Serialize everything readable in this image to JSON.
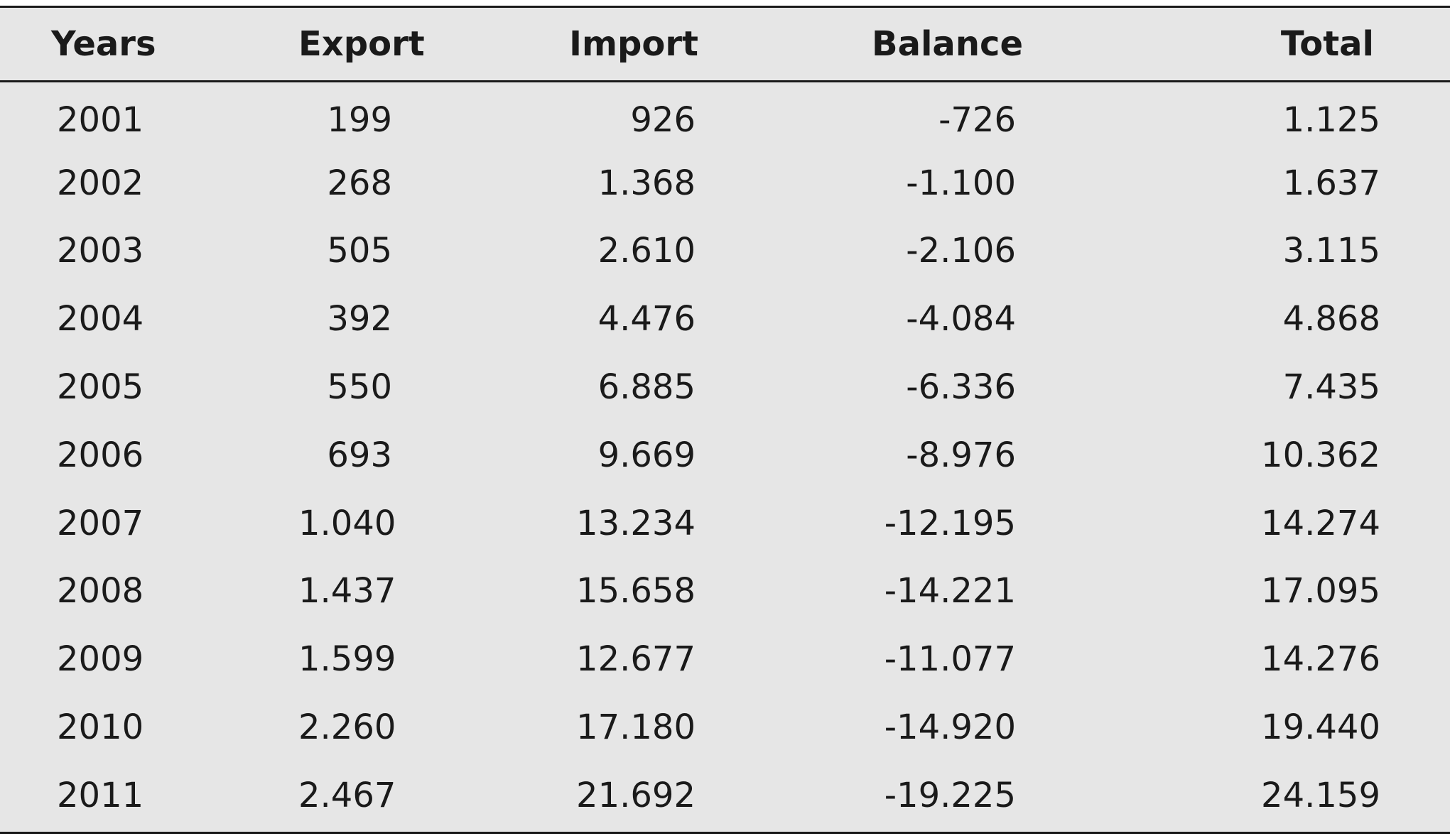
{
  "chart_data": {
    "type": "table",
    "columns": [
      "Years",
      "Export",
      "Import",
      "Balance",
      "Total"
    ],
    "rows": [
      [
        "2001",
        "199",
        "926",
        "-726",
        "1.125"
      ],
      [
        "2002",
        "268",
        "1.368",
        "-1.100",
        "1.637"
      ],
      [
        "2003",
        "505",
        "2.610",
        "-2.106",
        "3.115"
      ],
      [
        "2004",
        "392",
        "4.476",
        "-4.084",
        "4.868"
      ],
      [
        "2005",
        "550",
        "6.885",
        "-6.336",
        "7.435"
      ],
      [
        "2006",
        "693",
        "9.669",
        "-8.976",
        "10.362"
      ],
      [
        "2007",
        "1.040",
        "13.234",
        "-12.195",
        "14.274"
      ],
      [
        "2008",
        "1.437",
        "15.658",
        "-14.221",
        "17.095"
      ],
      [
        "2009",
        "1.599",
        "12.677",
        "-11.077",
        "14.276"
      ],
      [
        "2010",
        "2.260",
        "17.180",
        "-14.920",
        "19.440"
      ],
      [
        "2011",
        "2.467",
        "21.692",
        "-19.225",
        "24.159"
      ]
    ]
  }
}
